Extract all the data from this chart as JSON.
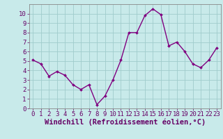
{
  "x": [
    0,
    1,
    2,
    3,
    4,
    5,
    6,
    7,
    8,
    9,
    10,
    11,
    12,
    13,
    14,
    15,
    16,
    17,
    18,
    19,
    20,
    21,
    22,
    23
  ],
  "y": [
    5.1,
    4.7,
    3.4,
    3.9,
    3.5,
    2.5,
    2.0,
    2.5,
    0.4,
    1.3,
    3.0,
    5.1,
    8.0,
    8.0,
    9.8,
    10.5,
    9.9,
    6.6,
    7.0,
    6.0,
    4.7,
    4.3,
    5.1,
    6.4
  ],
  "line_color": "#800080",
  "marker": "D",
  "marker_size": 2.0,
  "bg_color": "#c8eaea",
  "grid_color": "#a0cccc",
  "xlabel": "Windchill (Refroidissement éolien,°C)",
  "xlim": [
    -0.5,
    23.5
  ],
  "ylim": [
    0,
    11
  ],
  "yticks": [
    0,
    1,
    2,
    3,
    4,
    5,
    6,
    7,
    8,
    9,
    10
  ],
  "xticks": [
    0,
    1,
    2,
    3,
    4,
    5,
    6,
    7,
    8,
    9,
    10,
    11,
    12,
    13,
    14,
    15,
    16,
    17,
    18,
    19,
    20,
    21,
    22,
    23
  ],
  "tick_fontsize": 6.5,
  "xlabel_fontsize": 7.5,
  "line_width": 1.0
}
